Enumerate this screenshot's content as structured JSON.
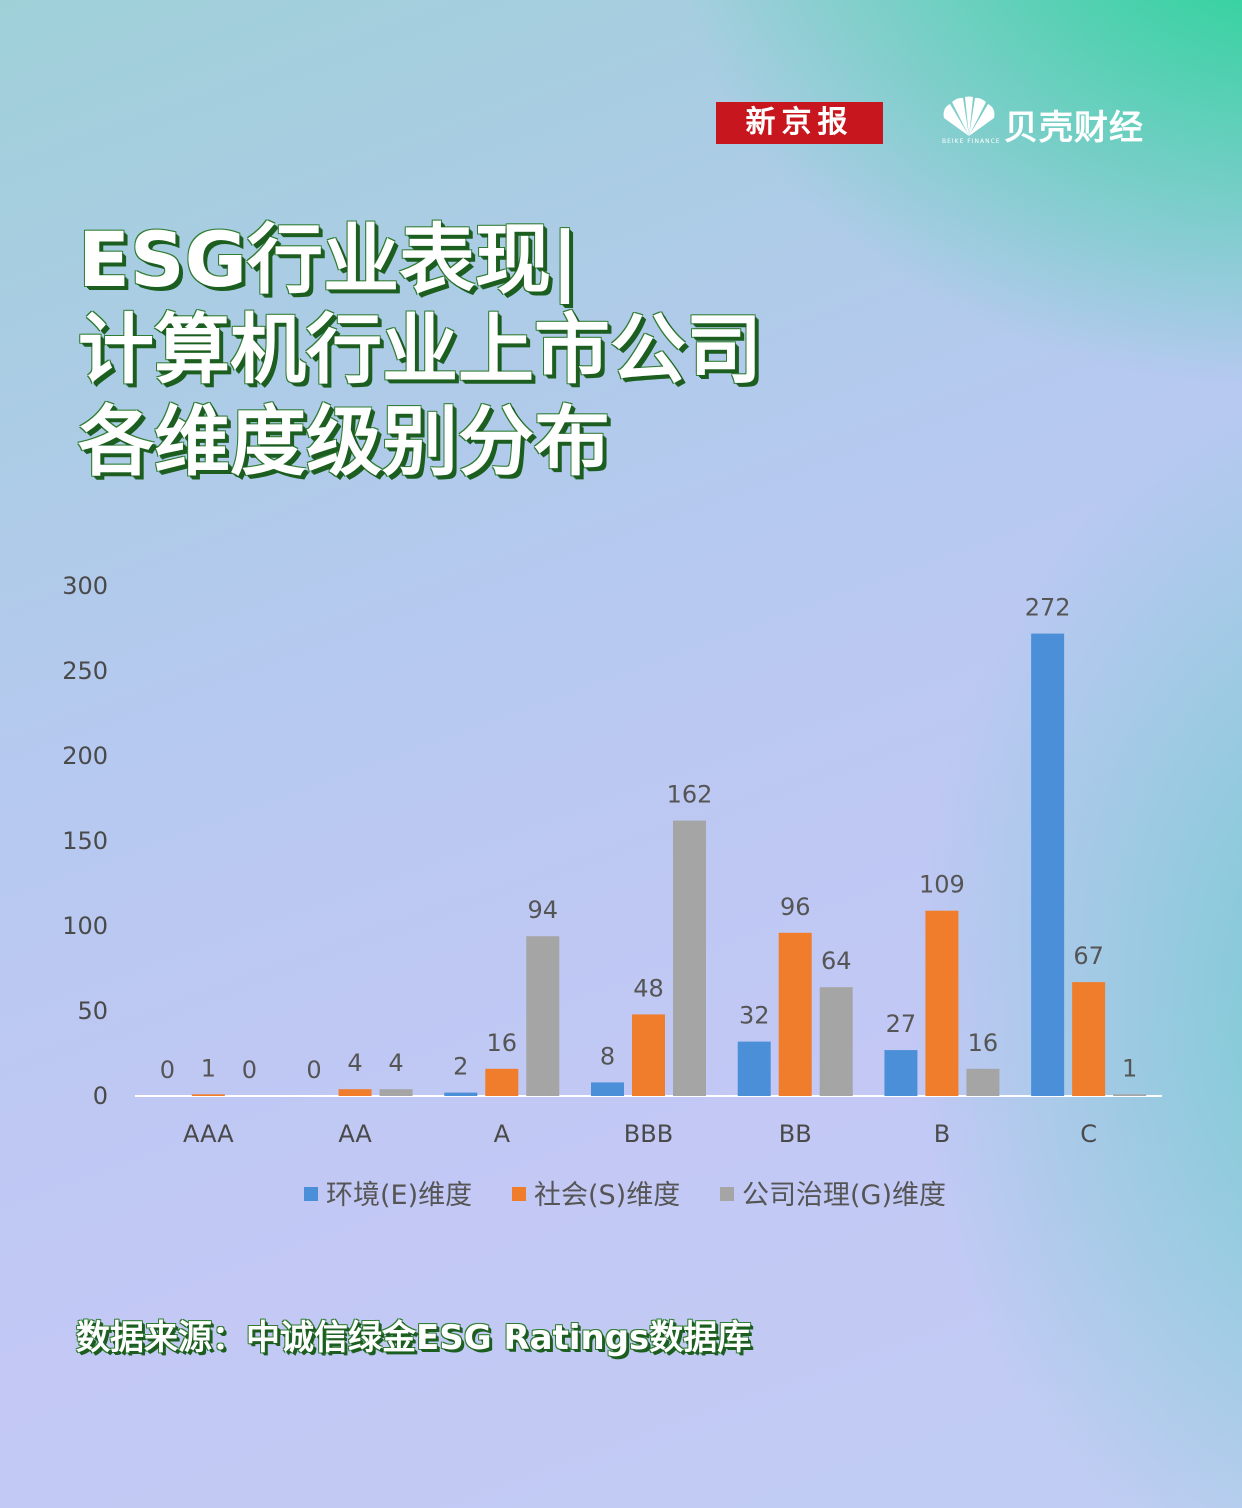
{
  "brand": {
    "xjb_text": "新京报",
    "beike_text": "贝壳财经",
    "beike_sub": "BEIKE FINANCE"
  },
  "title": {
    "line1": "ESG行业表现|",
    "line2": "计算机行业上市公司",
    "line3": "各维度级别分布"
  },
  "source": "数据来源：中诚信绿金ESG Ratings数据库",
  "chart_data": {
    "type": "bar",
    "categories": [
      "AAA",
      "AA",
      "A",
      "BBB",
      "BB",
      "B",
      "C"
    ],
    "series": [
      {
        "name": "环境(E)维度",
        "color": "#4a8fd8",
        "values": [
          0,
          0,
          2,
          8,
          32,
          27,
          272
        ]
      },
      {
        "name": "社会(S)维度",
        "color": "#ef7d2c",
        "values": [
          1,
          4,
          16,
          48,
          96,
          109,
          67
        ]
      },
      {
        "name": "公司治理(G)维度",
        "color": "#a5a5a5",
        "values": [
          0,
          4,
          94,
          162,
          64,
          16,
          1
        ]
      }
    ],
    "yticks": [
      0,
      50,
      100,
      150,
      200,
      250,
      300
    ],
    "ylim": [
      0,
      300
    ],
    "legend": "bottom",
    "grid": false
  }
}
